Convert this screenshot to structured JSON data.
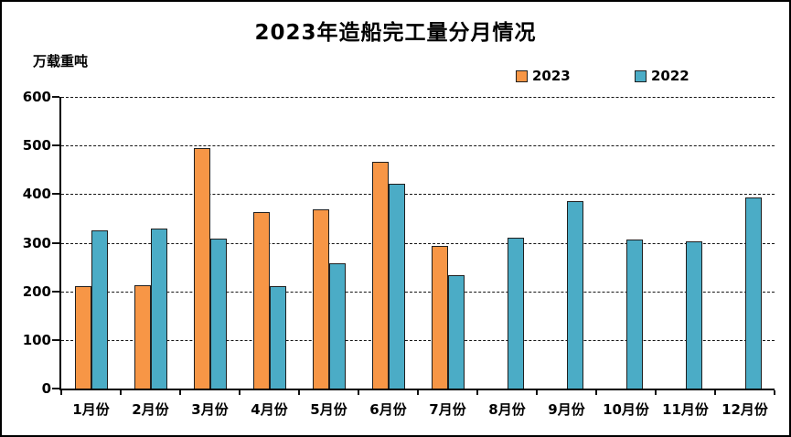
{
  "chart_data": {
    "type": "bar",
    "title": "2023年造船完工量分月情况",
    "ylabel": "万载重吨",
    "xlabel": "",
    "categories": [
      "1月份",
      "2月份",
      "3月份",
      "4月份",
      "5月份",
      "6月份",
      "7月份",
      "8月份",
      "9月份",
      "10月份",
      "11月份",
      "12月份"
    ],
    "series": [
      {
        "name": "2023",
        "color": "#F79646",
        "values": [
          211,
          213,
          495,
          363,
          368,
          466,
          294,
          null,
          null,
          null,
          null,
          null
        ]
      },
      {
        "name": "2022",
        "color": "#4BACC6",
        "values": [
          325,
          329,
          308,
          210,
          257,
          422,
          233,
          310,
          386,
          307,
          302,
          394
        ]
      }
    ],
    "ylim": [
      0,
      600
    ],
    "yticks": [
      0,
      100,
      200,
      300,
      400,
      500,
      600
    ],
    "grid": "horizontal-dashed",
    "legend_position": "top-right",
    "bar_border_color": "#1f1f1f",
    "text_color": "#000000",
    "background_color": "#ffffff"
  }
}
